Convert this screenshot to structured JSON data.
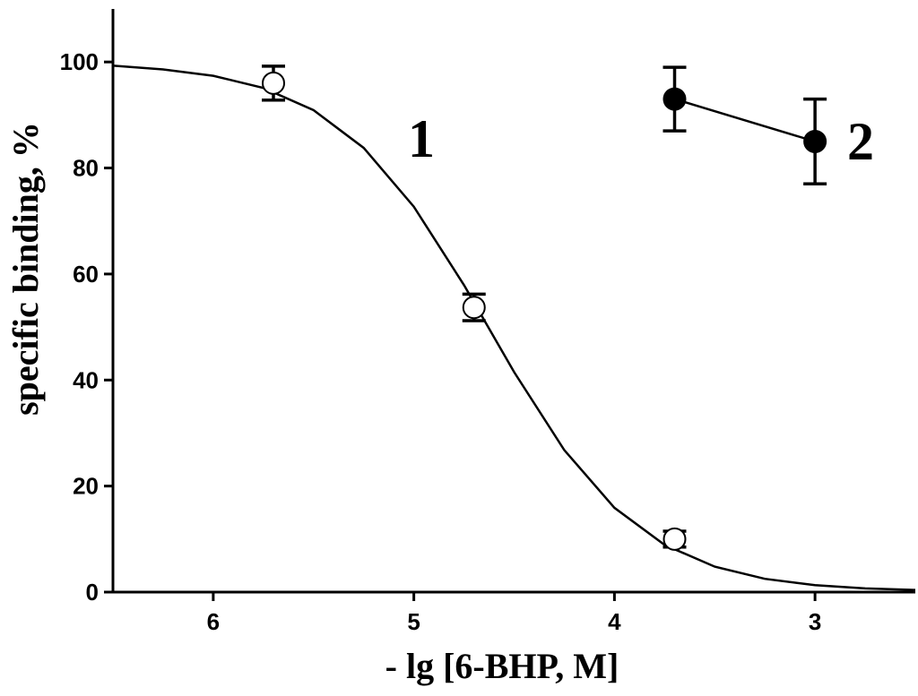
{
  "chart_data": {
    "type": "scatter",
    "xlabel": "- lg [6-BHP, M]",
    "ylabel": "specific binding, %",
    "xlim": [
      6.5,
      2.5
    ],
    "xticks": [
      6,
      5,
      4,
      3
    ],
    "ylim": [
      0,
      110
    ],
    "yticks": [
      0,
      20,
      40,
      60,
      80,
      100
    ],
    "series": [
      {
        "name": "1",
        "color": "#000000",
        "marker": "open",
        "line": false,
        "x": [
          5.7,
          4.7,
          3.7
        ],
        "values": [
          96,
          53.7,
          10
        ],
        "errors": [
          3.2,
          2.5,
          1.5
        ]
      },
      {
        "name": "2",
        "color": "#000000",
        "marker": "filled",
        "line": true,
        "x": [
          3.7,
          3
        ],
        "values": [
          93,
          85
        ],
        "errors": [
          6,
          8
        ]
      }
    ],
    "fit": {
      "color": "#000000",
      "x": [
        6.5,
        6.25,
        6.0,
        5.75,
        5.5,
        5.25,
        5.0,
        4.75,
        4.5,
        4.25,
        4.0,
        3.75,
        3.5,
        3.25,
        3.0,
        2.75,
        2.5
      ],
      "values": [
        99.3,
        98.6,
        97.4,
        95.1,
        90.9,
        83.8,
        72.7,
        57.9,
        41.5,
        26.8,
        15.9,
        8.9,
        4.8,
        2.5,
        1.3,
        0.7,
        0.4
      ]
    }
  }
}
